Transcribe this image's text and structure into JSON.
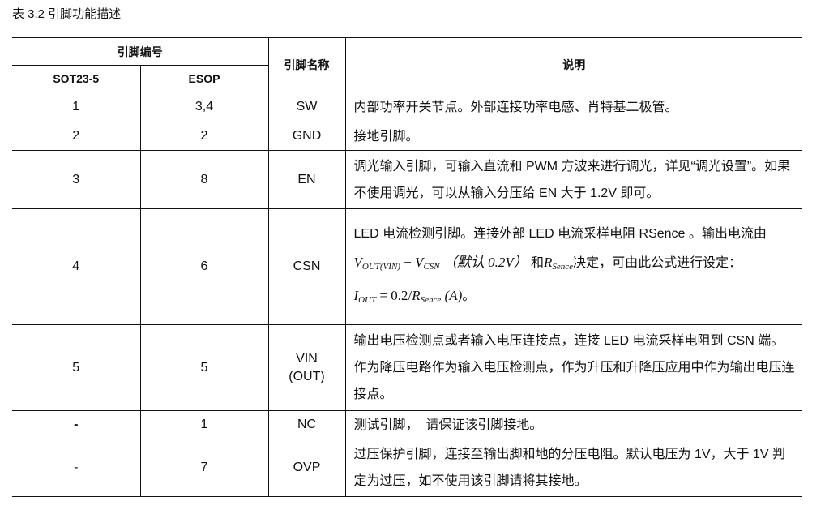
{
  "caption": "表 3.2  引脚功能描述",
  "header": {
    "pin_number": "引脚编号",
    "sot": "SOT23-5",
    "esop": "ESOP",
    "pin_name": "引脚名称",
    "description": "说明"
  },
  "rows": [
    {
      "sot": "1",
      "esop": "3,4",
      "name": "SW",
      "desc": "内部功率开关节点。外部连接功率电感、肖特基二极管。"
    },
    {
      "sot": "2",
      "esop": "2",
      "name": "GND",
      "desc": "接地引脚。"
    },
    {
      "sot": "3",
      "esop": "8",
      "name": "EN",
      "desc": "调光输入引脚，可输入直流和 PWM 方波来进行调光，详见“调光设置”。如果不使用调光，可以从输入分压给 EN 大于 1.2V 即可。"
    },
    {
      "sot": "4",
      "esop": "6",
      "name": "CSN",
      "desc_a": "LED 电流检测引脚。连接外部 LED 电流采样电阻 RSence 。输出电流由",
      "f_v": "V",
      "f_vout_sub": "OUT(VIN)",
      "f_minus": " − ",
      "f_vcsn_sub": "CSN",
      "f_default": " （默认 0.2V） ",
      "desc_b": "和",
      "f_r": "R",
      "f_r_sub": "Sence",
      "desc_c": "决定，可由此公式进行设定：",
      "f_i": "I",
      "f_i_sub": "OUT",
      "f_eq": " = 0.2/",
      "f_a": " (A)",
      "desc_end": "。"
    },
    {
      "sot": "5",
      "esop": "5",
      "name": "VIN (OUT)",
      "desc": "输出电压检测点或者输入电压连接点，连接 LED 电流采样电阻到 CSN 端。作为降压电路作为输入电压检测点，作为升压和升降压应用中作为输出电压连接点。"
    },
    {
      "sot": "-",
      "esop": "1",
      "name": "NC",
      "desc": "测试引脚，  请保证该引脚接地。"
    },
    {
      "sot": "-",
      "esop": "7",
      "name": "OVP",
      "desc": "过压保护引脚，连接至输出脚和地的分压电阻。默认电压为 1V，大于 1V 判定为过压，如不使用该引脚请将其接地。"
    }
  ]
}
